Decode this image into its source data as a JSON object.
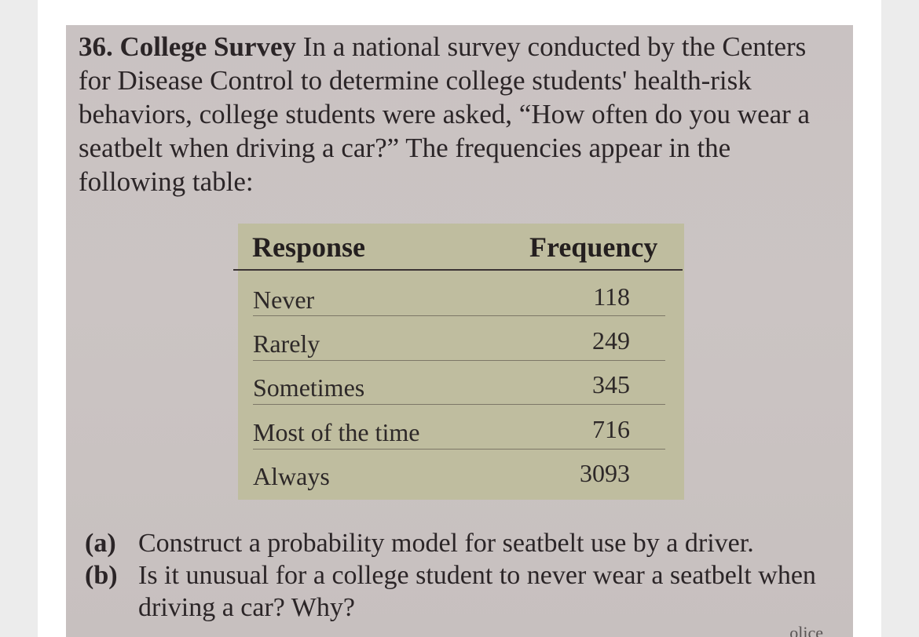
{
  "problem": {
    "number": "36.",
    "heading": "College Survey",
    "body": "In a national survey conducted by the Centers for Disease Control to determine college students' health-risk behaviors, college students were asked, “How often do you wear a seatbelt when driving a car?” The frequencies appear in the following table:"
  },
  "table": {
    "headers": [
      "Response",
      "Frequency"
    ],
    "rows": [
      {
        "response": "Never",
        "frequency": "118"
      },
      {
        "response": "Rarely",
        "frequency": "249"
      },
      {
        "response": "Sometimes",
        "frequency": "345"
      },
      {
        "response": "Most of the time",
        "frequency": "716"
      },
      {
        "response": "Always",
        "frequency": "3093"
      }
    ]
  },
  "parts": [
    {
      "tag": "(a)",
      "text": "Construct a probability model for seatbelt use by a driver."
    },
    {
      "tag": "(b)",
      "text": "Is it unusual for a college student to never wear a seatbelt when driving a car? Why?"
    }
  ],
  "fragment": "olice"
}
